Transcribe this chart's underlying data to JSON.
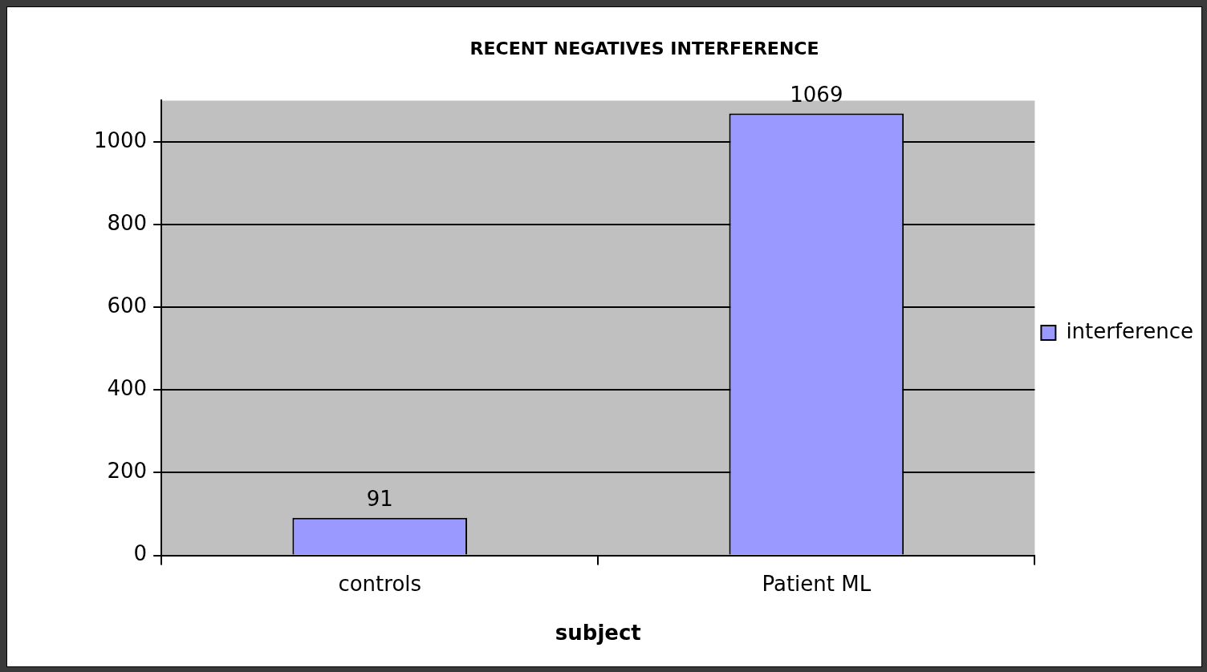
{
  "chart_data": {
    "type": "bar",
    "title": "RECENT NEGATIVES INTERFERENCE",
    "xlabel": "subject",
    "categories": [
      "controls",
      "Patient ML"
    ],
    "series": [
      {
        "name": "interference",
        "color": "#9999ff",
        "values": [
          91,
          1069
        ]
      }
    ],
    "ylim": [
      0,
      1100
    ],
    "yticks": [
      0,
      200,
      400,
      600,
      800,
      1000
    ],
    "grid": "y",
    "legend": "right",
    "data_labels": true
  }
}
